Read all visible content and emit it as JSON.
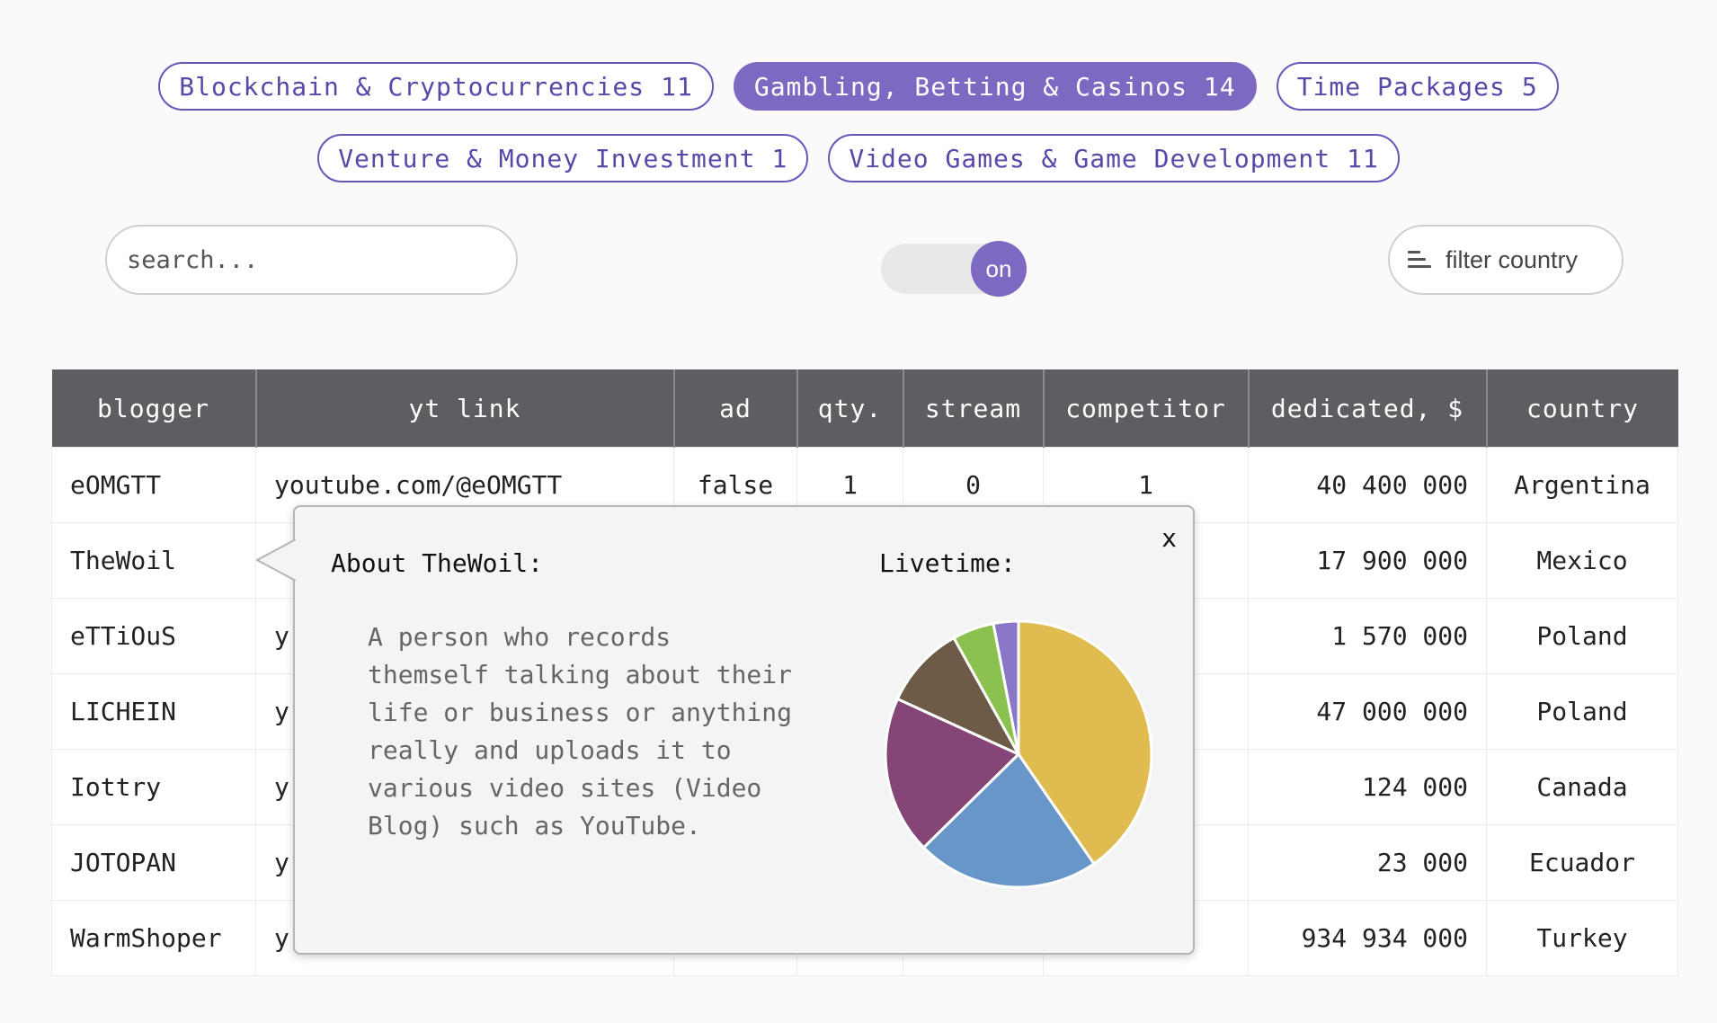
{
  "tags": [
    {
      "label": "Blockchain & Cryptocurrencies",
      "count": "11",
      "active": false
    },
    {
      "label": "Gambling, Betting & Casinos",
      "count": "14",
      "active": true
    },
    {
      "label": "Time Packages",
      "count": "5",
      "active": false
    },
    {
      "label": "Venture & Money Investment",
      "count": "1",
      "active": false
    },
    {
      "label": "Video Games & Game Development",
      "count": "11",
      "active": false
    }
  ],
  "search": {
    "placeholder": "search...",
    "value": ""
  },
  "toggle": {
    "label": "on",
    "state": true
  },
  "filter": {
    "label": "filter country",
    "icon": "sort-lines-icon"
  },
  "table": {
    "headers": [
      "blogger",
      "yt link",
      "ad",
      "qty.",
      "stream",
      "competitor",
      "dedicated, $",
      "country"
    ],
    "rows": [
      [
        "eOMGTT",
        "youtube.com/@eOMGTT",
        "false",
        "1",
        "0",
        "1",
        "40 400 000",
        "Argentina"
      ],
      [
        "TheWoil",
        "",
        "",
        "",
        "",
        "",
        "17 900 000",
        "Mexico"
      ],
      [
        "eTTiOuS",
        "y",
        "",
        "",
        "",
        "",
        "1 570 000",
        "Poland"
      ],
      [
        "LICHEIN",
        "y",
        "",
        "",
        "",
        "",
        "47 000 000",
        "Poland"
      ],
      [
        "Iottry",
        "y",
        "",
        "",
        "",
        "",
        "124 000",
        "Canada"
      ],
      [
        "JOTOPAN",
        "y",
        "",
        "",
        "",
        "",
        "23 000",
        "Ecuador"
      ],
      [
        "WarmShoper",
        "y",
        "",
        "",
        "",
        "",
        "934 934 000",
        "Turkey"
      ]
    ]
  },
  "popup": {
    "title": "About TheWoil:",
    "description": "A person who records\nthemself talking about their\nlife or business or anything\nreally and uploads it to\nvarious video sites (Video\nBlog) such as YouTube.",
    "livetime_label": "Livetime:",
    "close_label": "x"
  },
  "chart_data": {
    "type": "pie",
    "title": "Livetime:",
    "values": [
      40,
      22,
      19,
      10,
      5,
      3
    ],
    "colors": [
      "#e0bb50",
      "#6896c8",
      "#854577",
      "#6d5a47",
      "#8bc24f",
      "#8a77c8"
    ]
  },
  "colors": {
    "accent": "#7e69c2",
    "tag_border": "#6a55b8",
    "header_bg": "#5d5e62"
  }
}
